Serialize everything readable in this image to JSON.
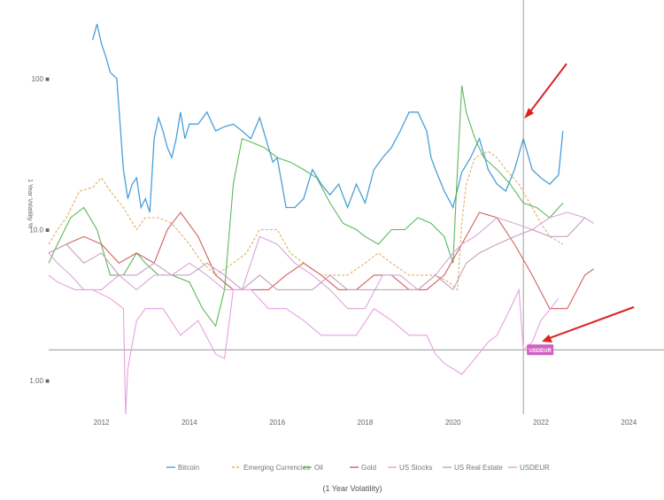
{
  "chart_data": {
    "type": "line",
    "title": "",
    "ylabel": "1 Year Volatility %",
    "xlabel": "(1 Year Volatility)",
    "yscale": "log",
    "ylim": [
      0.6,
      260
    ],
    "xlim": [
      2010.8,
      2024.8
    ],
    "x_ticks": [
      "2012",
      "2014",
      "2016",
      "2018",
      "2020",
      "2022",
      "2024"
    ],
    "y_ticks": [
      "100 ■",
      "10.0 ■",
      "1.00 ■"
    ],
    "legend_position": "bottom",
    "crosshair_x": 2021.6,
    "crosshair_y": 1.6,
    "highlight_label": "USDEUR",
    "series": [
      {
        "name": "Bitcoin",
        "color": "#4a9fd8",
        "dash": "",
        "x": [
          2011.8,
          2011.9,
          2012.0,
          2012.1,
          2012.2,
          2012.35,
          2012.5,
          2012.6,
          2012.7,
          2012.8,
          2012.9,
          2013.0,
          2013.1,
          2013.2,
          2013.3,
          2013.4,
          2013.5,
          2013.6,
          2013.7,
          2013.8,
          2013.9,
          2014.0,
          2014.2,
          2014.4,
          2014.6,
          2014.8,
          2015.0,
          2015.2,
          2015.4,
          2015.6,
          2015.8,
          2015.9,
          2016.0,
          2016.2,
          2016.4,
          2016.6,
          2016.8,
          2017.0,
          2017.2,
          2017.4,
          2017.6,
          2017.8,
          2018.0,
          2018.2,
          2018.4,
          2018.6,
          2018.8,
          2019.0,
          2019.2,
          2019.4,
          2019.5,
          2019.6,
          2019.8,
          2020.0,
          2020.2,
          2020.4,
          2020.6,
          2020.8,
          2021.0,
          2021.2,
          2021.4,
          2021.6,
          2021.8,
          2022.0,
          2022.2,
          2022.4,
          2022.5
        ],
        "values": [
          180,
          230,
          170,
          140,
          110,
          100,
          25,
          16,
          20,
          22,
          14,
          16,
          13,
          40,
          55,
          45,
          35,
          30,
          40,
          60,
          40,
          50,
          50,
          60,
          45,
          48,
          50,
          45,
          40,
          55,
          35,
          28,
          30,
          14,
          14,
          16,
          25,
          20,
          17,
          20,
          14,
          20,
          15,
          25,
          30,
          35,
          45,
          60,
          60,
          45,
          30,
          25,
          18,
          14,
          24,
          30,
          40,
          25,
          20,
          18,
          25,
          40,
          25,
          22,
          20,
          23,
          45
        ]
      },
      {
        "name": "Emerging Currencies",
        "color": "#e0b060",
        "dash": "3,2",
        "x": [
          2010.8,
          2011.0,
          2011.2,
          2011.5,
          2011.8,
          2012.0,
          2012.2,
          2012.5,
          2012.8,
          2013.0,
          2013.3,
          2013.6,
          2014.0,
          2014.3,
          2014.6,
          2015.0,
          2015.3,
          2015.6,
          2016.0,
          2016.3,
          2016.6,
          2017.0,
          2017.3,
          2017.6,
          2018.0,
          2018.3,
          2018.6,
          2019.0,
          2019.3,
          2019.6,
          2019.9,
          2020.1,
          2020.2,
          2020.3,
          2020.5,
          2020.8,
          2021.0,
          2021.2,
          2021.5,
          2021.8,
          2022.0,
          2022.2,
          2022.5
        ],
        "values": [
          8,
          10,
          12,
          18,
          19,
          22,
          18,
          14,
          10,
          12,
          12,
          11,
          8,
          6,
          5,
          6,
          7,
          10,
          10,
          7,
          6,
          5,
          5,
          5,
          6,
          7,
          6,
          5,
          5,
          5,
          4.5,
          4,
          11,
          20,
          30,
          33,
          30,
          25,
          20,
          14,
          11,
          9,
          8
        ]
      },
      {
        "name": "Oil",
        "color": "#5cb85c",
        "dash": "",
        "x": [
          2010.8,
          2011.0,
          2011.3,
          2011.6,
          2011.9,
          2012.2,
          2012.5,
          2012.8,
          2013.0,
          2013.3,
          2013.6,
          2014.0,
          2014.3,
          2014.6,
          2014.8,
          2015.0,
          2015.2,
          2015.4,
          2015.7,
          2016.0,
          2016.3,
          2016.6,
          2016.9,
          2017.2,
          2017.5,
          2017.8,
          2018.0,
          2018.3,
          2018.6,
          2018.9,
          2019.2,
          2019.5,
          2019.8,
          2020.0,
          2020.1,
          2020.2,
          2020.3,
          2020.5,
          2020.7,
          2021.0,
          2021.3,
          2021.6,
          2021.9,
          2022.2,
          2022.5
        ],
        "values": [
          6,
          8,
          12,
          14,
          10,
          5,
          5,
          7,
          6,
          5,
          5,
          4.5,
          3,
          2.3,
          4,
          20,
          40,
          38,
          35,
          30,
          28,
          25,
          22,
          15,
          11,
          10,
          9,
          8,
          10,
          10,
          12,
          11,
          9,
          6,
          25,
          90,
          60,
          40,
          30,
          25,
          20,
          15,
          14,
          12,
          15
        ]
      },
      {
        "name": "Gold",
        "color": "#d06060",
        "dash": "",
        "x": [
          2010.8,
          2011.2,
          2011.6,
          2012.0,
          2012.4,
          2012.8,
          2013.2,
          2013.5,
          2013.8,
          2014.2,
          2014.6,
          2015.0,
          2015.4,
          2015.8,
          2016.2,
          2016.6,
          2017.0,
          2017.4,
          2017.8,
          2018.2,
          2018.6,
          2019.0,
          2019.4,
          2019.8,
          2020.2,
          2020.6,
          2021.0,
          2021.4,
          2021.8,
          2022.2,
          2022.6,
          2023.0,
          2023.2
        ],
        "values": [
          7,
          8,
          9,
          8,
          6,
          7,
          6,
          10,
          13,
          9,
          5,
          4,
          4,
          4,
          5,
          6,
          5,
          4,
          4,
          5,
          5,
          4,
          4,
          5,
          8,
          13,
          12,
          8,
          5,
          3,
          3,
          5,
          5.5
        ]
      },
      {
        "name": "US Stocks",
        "color": "#d8a8d8",
        "dash": "",
        "x": [
          2010.8,
          2011.0,
          2011.3,
          2011.6,
          2012.0,
          2012.4,
          2012.8,
          2013.2,
          2013.6,
          2014.0,
          2014.4,
          2014.8,
          2015.2,
          2015.6,
          2016.0,
          2016.4,
          2016.8,
          2017.2,
          2017.6,
          2018.0,
          2018.4,
          2018.8,
          2019.2,
          2019.6,
          2020.0,
          2020.2,
          2020.5,
          2021.0,
          2021.4,
          2021.8,
          2022.2,
          2022.6,
          2023.0,
          2023.2
        ],
        "values": [
          7,
          6,
          5,
          4,
          4,
          5,
          4,
          5,
          5,
          6,
          5,
          4,
          4,
          9,
          8,
          6,
          5,
          4,
          3,
          3,
          5,
          5,
          4,
          5,
          7,
          8,
          9,
          12,
          11,
          10,
          12,
          13,
          12,
          11
        ]
      },
      {
        "name": "US Real Estate",
        "color": "#c8a0c0",
        "dash": "",
        "x": [
          2010.8,
          2011.2,
          2011.6,
          2012.0,
          2012.4,
          2012.8,
          2013.2,
          2013.6,
          2014.0,
          2014.4,
          2014.8,
          2015.2,
          2015.6,
          2016.0,
          2016.4,
          2016.8,
          2017.2,
          2017.6,
          2018.0,
          2018.4,
          2018.8,
          2019.2,
          2019.6,
          2020.0,
          2020.3,
          2020.6,
          2021.0,
          2021.4,
          2021.8,
          2022.2,
          2022.6,
          2023.0
        ],
        "values": [
          7,
          8,
          6,
          7,
          5,
          5,
          6,
          5,
          5,
          6,
          5,
          4,
          5,
          4,
          4,
          4,
          5,
          4,
          4,
          4,
          4,
          4,
          5,
          4,
          6,
          7,
          8,
          9,
          10,
          9,
          9,
          12
        ]
      },
      {
        "name": "USDEUR",
        "color": "#e8a0e0",
        "dash": "",
        "x": [
          2010.8,
          2011.0,
          2011.4,
          2011.8,
          2012.2,
          2012.5,
          2012.55,
          2012.6,
          2012.8,
          2013.0,
          2013.4,
          2013.8,
          2014.2,
          2014.6,
          2014.8,
          2015.0,
          2015.4,
          2015.8,
          2016.2,
          2016.6,
          2017.0,
          2017.4,
          2017.8,
          2018.2,
          2018.6,
          2019.0,
          2019.4,
          2019.6,
          2019.8,
          2020.0,
          2020.2,
          2020.5,
          2020.8,
          2021.0,
          2021.3,
          2021.5,
          2021.6,
          2021.8,
          2022.0,
          2022.4
        ],
        "values": [
          5,
          4.5,
          4,
          4,
          3.5,
          3,
          0.6,
          1.2,
          2.5,
          3,
          3,
          2,
          2.5,
          1.5,
          1.4,
          4,
          4,
          3,
          3,
          2.5,
          2,
          2,
          2,
          3,
          2.5,
          2,
          2,
          1.5,
          1.3,
          1.2,
          1.1,
          1.4,
          1.8,
          2,
          3,
          4,
          1.6,
          1.8,
          2.5,
          3.5
        ]
      }
    ]
  }
}
